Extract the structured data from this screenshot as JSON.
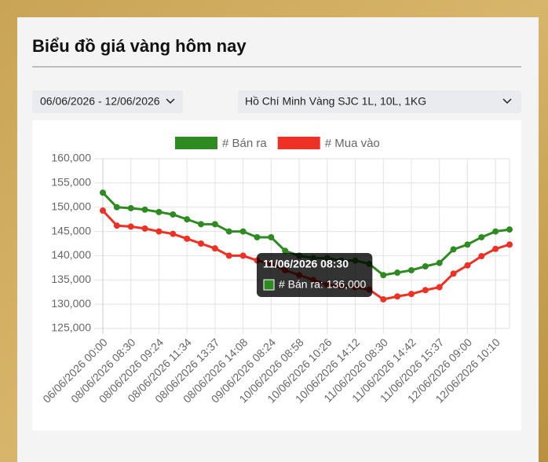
{
  "header": {
    "title": "Biểu đồ giá vàng hôm nay"
  },
  "filters": {
    "date_range": "06/06/2026 - 12/06/2026",
    "product": "Hồ Chí Minh Vàng SJC 1L, 10L, 1KG"
  },
  "chart_data": {
    "type": "line",
    "categories": [
      "06/06/2026 00:00",
      null,
      "08/06/2026 08:30",
      null,
      "08/06/2026 09:24",
      null,
      "08/06/2026 11:34",
      null,
      "08/06/2026 13:37",
      null,
      "08/06/2026 14:08",
      null,
      "09/06/2026 08:24",
      null,
      "10/06/2026 08:58",
      null,
      "10/06/2026 10:26",
      null,
      "10/06/2026 14:12",
      null,
      "11/06/2026 08:30",
      null,
      "11/06/2026 14:42",
      null,
      "11/06/2026 15:37",
      null,
      "12/06/2026 09:00",
      null,
      "12/06/2026 10:10",
      null
    ],
    "series": [
      {
        "name": "# Bán ra",
        "color": "#2e8b22",
        "values": [
          153000,
          150000,
          149800,
          149500,
          149000,
          148500,
          147500,
          146500,
          146500,
          145000,
          145000,
          143800,
          143800,
          141000,
          140000,
          139500,
          139500,
          139000,
          139000,
          138300,
          136000,
          136500,
          137000,
          137800,
          138500,
          141300,
          142300,
          143800,
          145000,
          145400
        ]
      },
      {
        "name": "# Mua vào",
        "color": "#ee3124",
        "values": [
          149300,
          146200,
          146000,
          145600,
          145000,
          144500,
          143500,
          142500,
          141500,
          140000,
          140000,
          139000,
          138300,
          137000,
          136000,
          135000,
          134000,
          133700,
          133500,
          133000,
          131000,
          131600,
          132100,
          132900,
          133500,
          136300,
          138000,
          139900,
          141400,
          142300
        ]
      }
    ],
    "ylim": [
      125000,
      160000
    ],
    "yticks": [
      {
        "value": 125000,
        "label": "125,000"
      },
      {
        "value": 130000,
        "label": "130,000"
      },
      {
        "value": 135000,
        "label": "135,000"
      },
      {
        "value": 140000,
        "label": "140,000"
      },
      {
        "value": 145000,
        "label": "145,000"
      },
      {
        "value": 150000,
        "label": "150,000"
      },
      {
        "value": 155000,
        "label": "155,000"
      },
      {
        "value": 160000,
        "label": "160,000"
      }
    ],
    "grid": true,
    "legend": "top",
    "tooltip": {
      "title": "11/06/2026 08:30",
      "label": "# Bán ra: 136,000",
      "series": 0,
      "index": 20
    }
  }
}
